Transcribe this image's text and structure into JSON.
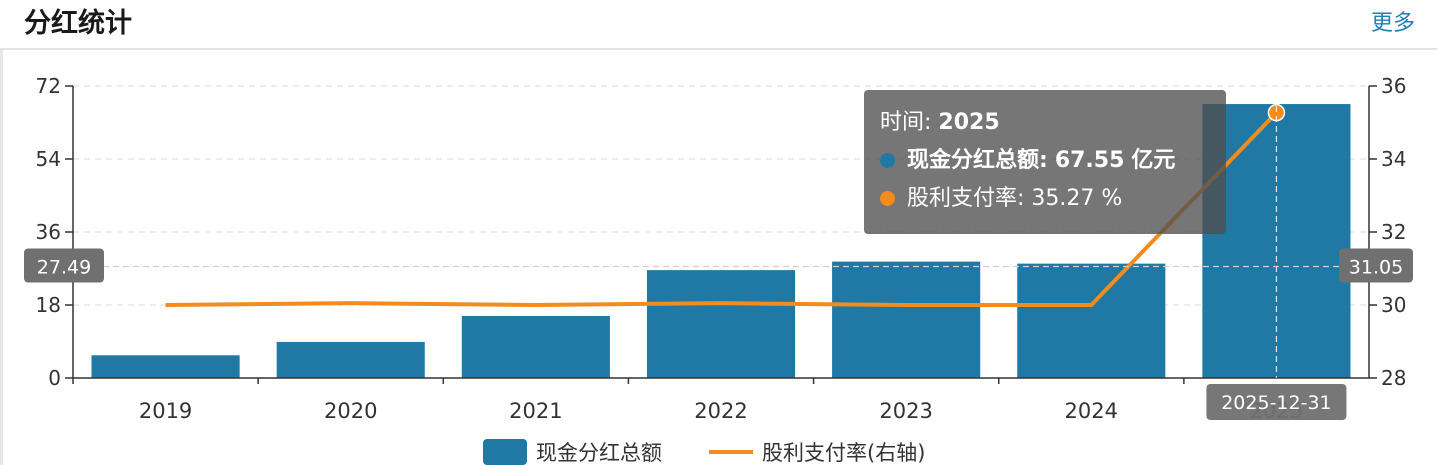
{
  "header": {
    "title": "分红统计",
    "more_label": "更多"
  },
  "colors": {
    "bar": "#2079a5",
    "line": "#f28c1c",
    "axis": "#333333",
    "grid": "#d9d9d9"
  },
  "tooltip": {
    "time_label": "时间:",
    "time_value": "2025",
    "series1_label": "现金分红总额:",
    "series1_value": "67.55",
    "series1_unit": "亿元",
    "series2_label": "股利支付率:",
    "series2_value": "35.27",
    "series2_unit": "%"
  },
  "crosshair": {
    "left_readout": "27.49",
    "right_readout": "31.05",
    "x_readout": "2025-12-31"
  },
  "legend": {
    "bar_label": "现金分红总额",
    "line_label": "股利支付率(右轴)"
  },
  "chart_data": {
    "type": "bar",
    "categories": [
      "2019",
      "2020",
      "2021",
      "2022",
      "2023",
      "2024",
      "2025"
    ],
    "series": [
      {
        "name": "现金分红总额",
        "type": "bar",
        "axis": "left",
        "values": [
          5.6,
          8.9,
          15.3,
          26.6,
          28.7,
          28.2,
          67.55
        ]
      },
      {
        "name": "股利支付率(右轴)",
        "type": "line",
        "axis": "right",
        "values": [
          30.0,
          30.05,
          30.0,
          30.05,
          30.0,
          30.0,
          35.27
        ]
      }
    ],
    "left_axis": {
      "ylim": [
        0,
        72
      ],
      "ticks": [
        "0",
        "18",
        "36",
        "54",
        "72"
      ]
    },
    "right_axis": {
      "ylim": [
        28,
        36
      ],
      "ticks": [
        "28",
        "30",
        "32",
        "34",
        "36"
      ]
    },
    "grid": true,
    "legend_position": "bottom-center"
  }
}
